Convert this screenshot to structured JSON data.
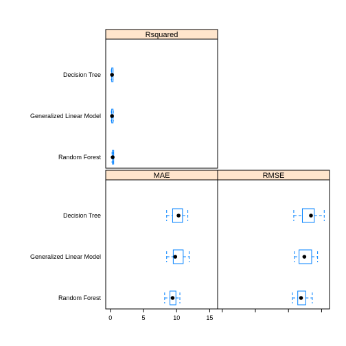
{
  "chart_data": {
    "type": "box",
    "title": "",
    "xlabel": "",
    "ylabel": "",
    "categories": [
      "Decision Tree",
      "Generalized Linear Model",
      "Random Forest"
    ],
    "xlim": [
      -0.7,
      16.2
    ],
    "x_ticks": [
      0,
      5,
      10,
      15
    ],
    "grid": false,
    "colors": {
      "box": "#0080ff",
      "strip": "#ffe5cc",
      "median_dot": "#000000",
      "frame": "#000000"
    },
    "panels": [
      {
        "name": "Rsquared",
        "boxes": [
          {
            "category": "Decision Tree",
            "whisker_low": 0.15,
            "q1": 0.2,
            "median": 0.25,
            "q3": 0.35,
            "whisker_high": 0.4
          },
          {
            "category": "Generalized Linear Model",
            "whisker_low": 0.15,
            "q1": 0.2,
            "median": 0.25,
            "q3": 0.4,
            "whisker_high": 0.45
          },
          {
            "category": "Random Forest",
            "whisker_low": 0.25,
            "q1": 0.3,
            "median": 0.35,
            "q3": 0.4,
            "whisker_high": 0.45
          }
        ]
      },
      {
        "name": "MAE",
        "boxes": [
          {
            "category": "Decision Tree",
            "whisker_low": 8.5,
            "q1": 9.4,
            "median": 10.3,
            "q3": 10.9,
            "whisker_high": 11.7
          },
          {
            "category": "Generalized Linear Model",
            "whisker_low": 8.5,
            "q1": 9.5,
            "median": 9.8,
            "q3": 11.0,
            "whisker_high": 11.9
          },
          {
            "category": "Random Forest",
            "whisker_low": 8.2,
            "q1": 9.0,
            "median": 9.4,
            "q3": 9.9,
            "whisker_high": 10.5
          }
        ]
      },
      {
        "name": "RMSE",
        "boxes": [
          {
            "category": "Decision Tree",
            "whisker_low": 10.8,
            "q1": 12.1,
            "median": 13.4,
            "q3": 13.9,
            "whisker_high": 15.4
          },
          {
            "category": "Generalized Linear Model",
            "whisker_low": 10.9,
            "q1": 11.6,
            "median": 12.4,
            "q3": 13.5,
            "whisker_high": 14.4
          },
          {
            "category": "Random Forest",
            "whisker_low": 10.6,
            "q1": 11.4,
            "median": 11.9,
            "q3": 12.6,
            "whisker_high": 13.6
          }
        ]
      }
    ]
  }
}
